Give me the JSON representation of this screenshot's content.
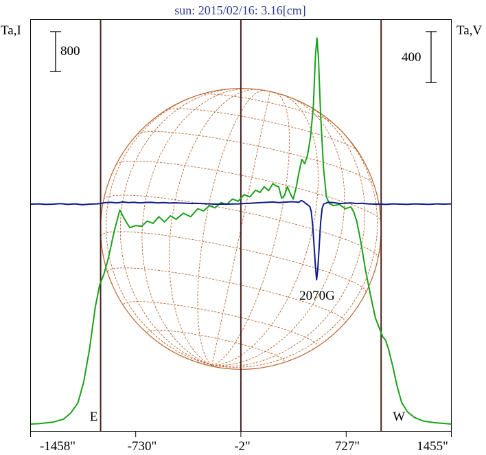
{
  "chart_data": {
    "type": "line",
    "title": "sun: 2015/02/16: 3.16[cm]",
    "left_axis_label": "Ta,I",
    "right_axis_label": "Ta,V",
    "scale_left_label": "800",
    "scale_right_label": "400",
    "xlim": [
      -1458,
      1455
    ],
    "x_tick_labels": [
      "-1458\"",
      "-730\"",
      "-2\"",
      "727\"",
      "1455\""
    ],
    "x_tick_values": [
      -1458,
      -730,
      -2,
      727,
      1455
    ],
    "limb_markers": [
      {
        "label": "E",
        "x": -973
      },
      {
        "label": "",
        "x": -2
      },
      {
        "label": "W",
        "x": 969
      }
    ],
    "annotations": [
      {
        "text": "2070G",
        "x": 525
      }
    ],
    "legend": "none",
    "grid": false,
    "colors": {
      "intensity": "#1aa01a",
      "polarization": "#0d1a8c",
      "disk": "#b8602a",
      "markers": "#4a1f1f",
      "title": "#2f3a8f"
    },
    "series": [
      {
        "name": "",
        "color": "#1aa01a",
        "points": [
          [
            -1458,
            0
          ],
          [
            -1400,
            10
          ],
          [
            -1300,
            45
          ],
          [
            -1230,
            110
          ],
          [
            -1180,
            250
          ],
          [
            -1130,
            480
          ],
          [
            -1090,
            950
          ],
          [
            -1050,
            1700
          ],
          [
            -1010,
            2650
          ],
          [
            -980,
            3150
          ],
          [
            -950,
            3400
          ],
          [
            -920,
            3750
          ],
          [
            -880,
            4350
          ],
          [
            -860,
            4600
          ],
          [
            -840,
            4850
          ],
          [
            -800,
            4600
          ],
          [
            -770,
            4450
          ],
          [
            -730,
            4500
          ],
          [
            -690,
            4480
          ],
          [
            -650,
            4600
          ],
          [
            -610,
            4550
          ],
          [
            -570,
            4700
          ],
          [
            -530,
            4580
          ],
          [
            -490,
            4720
          ],
          [
            -450,
            4640
          ],
          [
            -400,
            4780
          ],
          [
            -350,
            4700
          ],
          [
            -300,
            4880
          ],
          [
            -260,
            4830
          ],
          [
            -220,
            4950
          ],
          [
            -180,
            4900
          ],
          [
            -140,
            5020
          ],
          [
            -100,
            4980
          ],
          [
            -60,
            5100
          ],
          [
            -20,
            5050
          ],
          [
            20,
            5200
          ],
          [
            60,
            5150
          ],
          [
            100,
            5300
          ],
          [
            130,
            5250
          ],
          [
            160,
            5380
          ],
          [
            190,
            5290
          ],
          [
            220,
            5450
          ],
          [
            240,
            5400
          ],
          [
            260,
            5380
          ],
          [
            280,
            5120
          ],
          [
            300,
            5180
          ],
          [
            320,
            5380
          ],
          [
            340,
            5220
          ],
          [
            360,
            5100
          ],
          [
            380,
            5350
          ],
          [
            400,
            5700
          ],
          [
            420,
            6000
          ],
          [
            440,
            5900
          ],
          [
            460,
            6100
          ],
          [
            480,
            6500
          ],
          [
            500,
            7200
          ],
          [
            515,
            8400
          ],
          [
            525,
            8750
          ],
          [
            535,
            8300
          ],
          [
            550,
            7000
          ],
          [
            570,
            5800
          ],
          [
            590,
            5150
          ],
          [
            610,
            5000
          ],
          [
            640,
            4950
          ],
          [
            680,
            4980
          ],
          [
            720,
            4880
          ],
          [
            760,
            4920
          ],
          [
            780,
            4800
          ],
          [
            800,
            4600
          ],
          [
            830,
            4100
          ],
          [
            860,
            3500
          ],
          [
            900,
            2850
          ],
          [
            930,
            2400
          ],
          [
            960,
            2150
          ],
          [
            980,
            1980
          ],
          [
            1000,
            1900
          ],
          [
            1020,
            1700
          ],
          [
            1050,
            1300
          ],
          [
            1080,
            850
          ],
          [
            1110,
            500
          ],
          [
            1150,
            280
          ],
          [
            1200,
            150
          ],
          [
            1260,
            70
          ],
          [
            1330,
            35
          ],
          [
            1400,
            15
          ],
          [
            1455,
            0
          ]
        ]
      },
      {
        "name": "",
        "color": "#0d1a8c",
        "points": [
          [
            -1458,
            0
          ],
          [
            -1400,
            5
          ],
          [
            -1350,
            -5
          ],
          [
            -1300,
            0
          ],
          [
            -1250,
            8
          ],
          [
            -1200,
            -5
          ],
          [
            -1150,
            5
          ],
          [
            -1100,
            -10
          ],
          [
            -1050,
            0
          ],
          [
            -1000,
            5
          ],
          [
            -973,
            10
          ],
          [
            -940,
            25
          ],
          [
            -900,
            30
          ],
          [
            -860,
            20
          ],
          [
            -820,
            35
          ],
          [
            -780,
            25
          ],
          [
            -740,
            30
          ],
          [
            -700,
            20
          ],
          [
            -660,
            28
          ],
          [
            -620,
            30
          ],
          [
            -580,
            20
          ],
          [
            -540,
            25
          ],
          [
            -500,
            18
          ],
          [
            -460,
            22
          ],
          [
            -420,
            18
          ],
          [
            -380,
            15
          ],
          [
            -340,
            10
          ],
          [
            -300,
            12
          ],
          [
            -260,
            8
          ],
          [
            -220,
            5
          ],
          [
            -180,
            0
          ],
          [
            -140,
            0
          ],
          [
            -100,
            0
          ],
          [
            -60,
            2
          ],
          [
            -20,
            5
          ],
          [
            20,
            10
          ],
          [
            60,
            15
          ],
          [
            100,
            20
          ],
          [
            140,
            25
          ],
          [
            180,
            30
          ],
          [
            220,
            35
          ],
          [
            260,
            25
          ],
          [
            290,
            30
          ],
          [
            320,
            35
          ],
          [
            350,
            40
          ],
          [
            380,
            35
          ],
          [
            400,
            30
          ],
          [
            415,
            60
          ],
          [
            430,
            45
          ],
          [
            445,
            15
          ],
          [
            460,
            -10
          ],
          [
            475,
            -40
          ],
          [
            485,
            -120
          ],
          [
            495,
            -350
          ],
          [
            505,
            -700
          ],
          [
            515,
            -1050
          ],
          [
            522,
            -1250
          ],
          [
            530,
            -1100
          ],
          [
            540,
            -700
          ],
          [
            550,
            -300
          ],
          [
            560,
            -80
          ],
          [
            570,
            0
          ],
          [
            600,
            30
          ],
          [
            640,
            25
          ],
          [
            680,
            10
          ],
          [
            720,
            15
          ],
          [
            760,
            20
          ],
          [
            800,
            10
          ],
          [
            840,
            15
          ],
          [
            880,
            5
          ],
          [
            920,
            0
          ],
          [
            969,
            0
          ],
          [
            1000,
            -5
          ],
          [
            1050,
            5
          ],
          [
            1100,
            0
          ],
          [
            1150,
            -5
          ],
          [
            1200,
            5
          ],
          [
            1250,
            0
          ],
          [
            1300,
            -5
          ],
          [
            1350,
            5
          ],
          [
            1400,
            0
          ],
          [
            1455,
            5
          ]
        ]
      }
    ]
  }
}
